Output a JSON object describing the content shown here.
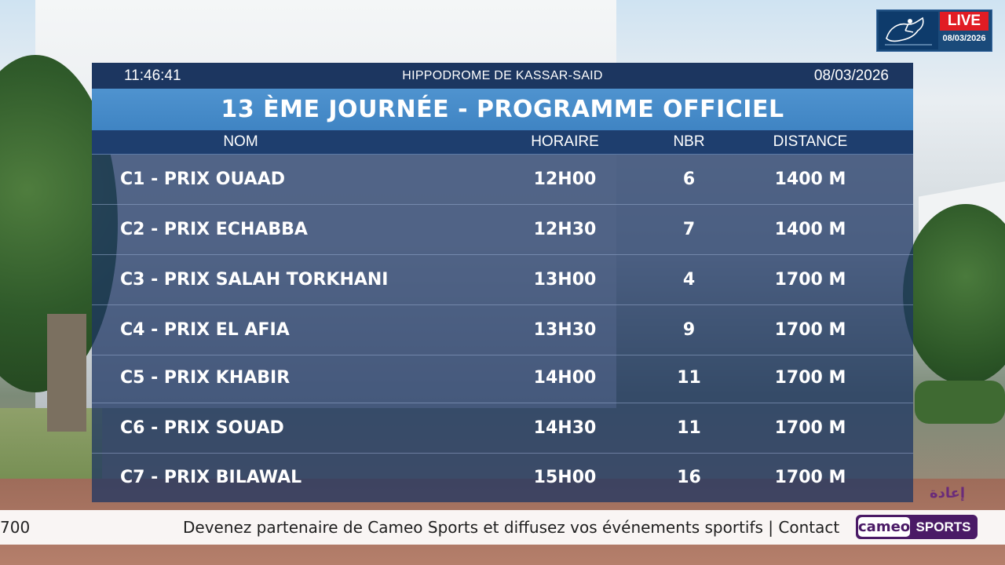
{
  "header": {
    "time": "11:46:41",
    "venue": "HIPPODROME DE KASSAR-SAID",
    "date": "08/03/2026"
  },
  "title": "13 ÈME JOURNÉE - PROGRAMME  OFFICIEL",
  "columns": [
    "NOM",
    "HORAIRE",
    "NBR",
    "DISTANCE"
  ],
  "races": [
    {
      "name": "C1 - PRIX   OUAAD",
      "time": "12H00",
      "nbr": "6",
      "distance": "1400 M"
    },
    {
      "name": "C2 - PRIX  ECHABBA",
      "time": "12H30",
      "nbr": "7",
      "distance": "1400 M"
    },
    {
      "name": "C3 - PRIX  SALAH TORKHANI",
      "time": "13H00",
      "nbr": "4",
      "distance": "1700 M"
    },
    {
      "name": "C4 - PRIX  EL AFIA",
      "time": "13H30",
      "nbr": "9",
      "distance": "1700 M"
    },
    {
      "name": "C5 - PRIX  KHABIR",
      "time": "14H00",
      "nbr": "11",
      "distance": "1700 M"
    },
    {
      "name": "C6 - PRIX  SOUAD",
      "time": "14H30",
      "nbr": "11",
      "distance": "1700 M"
    },
    {
      "name": "C7 - PRIX  BILAWAL",
      "time": "15H00",
      "nbr": "16",
      "distance": "1700 M"
    }
  ],
  "live_badge": {
    "label": "LIVE",
    "date": "08/03/2026",
    "emblem_icon": "horse-rider-emblem-icon"
  },
  "replay_label": "إعادة",
  "ticker": {
    "left_fragment": "700",
    "text": "Devenez partenaire de Cameo Sports et diffusez vos événements sportifs | Contact :",
    "logo_word": "cameo",
    "logo_sports": "SPORTS"
  },
  "colors": {
    "info_bar": "#1c3660",
    "title_bar": "#4a8fcc",
    "header_row": "#1e3e6e",
    "rows_overlay": "#1c3462",
    "live_red": "#e11c24",
    "cameo_purple": "#4a1a66"
  }
}
